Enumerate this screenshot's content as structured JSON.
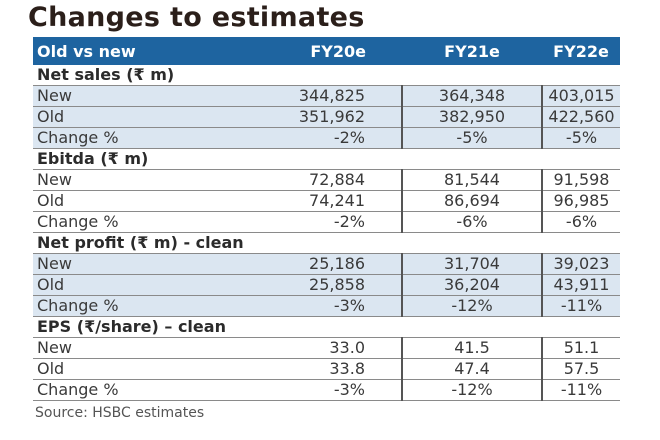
{
  "title": "Changes to estimates",
  "header": [
    "Old vs new",
    "FY20e",
    "FY21e",
    "FY22e"
  ],
  "sections": [
    {
      "label": "Net sales (₹ m)",
      "rows": [
        [
          "New",
          "344,825",
          "364,348",
          "403,015"
        ],
        [
          "Old",
          "351,962",
          "382,950",
          "422,560"
        ],
        [
          "Change %",
          "-2%",
          "-5%",
          "-5%"
        ]
      ]
    },
    {
      "label": "Ebitda (₹ m)",
      "rows": [
        [
          "New",
          "72,884",
          "81,544",
          "91,598"
        ],
        [
          "Old",
          "74,241",
          "86,694",
          "96,985"
        ],
        [
          "Change %",
          "-2%",
          "-6%",
          "-6%"
        ]
      ]
    },
    {
      "label": "Net profit (₹ m) - clean",
      "rows": [
        [
          "New",
          "25,186",
          "31,704",
          "39,023"
        ],
        [
          "Old",
          "25,858",
          "36,204",
          "43,911"
        ],
        [
          "Change %",
          "-3%",
          "-12%",
          "-11%"
        ]
      ]
    },
    {
      "label": "EPS (₹/share) – clean",
      "rows": [
        [
          "New",
          "33.0",
          "41.5",
          "51.1"
        ],
        [
          "Old",
          "33.8",
          "47.4",
          "57.5"
        ],
        [
          "Change %",
          "-3%",
          "-12%",
          "-11%"
        ]
      ]
    }
  ],
  "source": "Source: HSBC estimates",
  "colors": {
    "header": "#1e64a0",
    "shade": "#dbe6f1"
  }
}
